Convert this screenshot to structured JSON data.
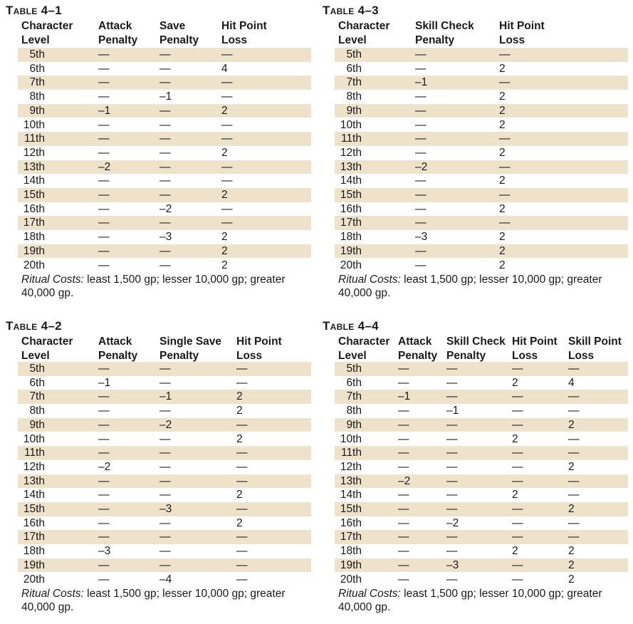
{
  "tables": [
    {
      "title": "Table 4–1",
      "headers": [
        [
          "Character",
          "Level"
        ],
        [
          "Attack",
          "Penalty"
        ],
        [
          "Save",
          "Penalty"
        ],
        [
          "Hit Point",
          "Loss"
        ]
      ],
      "rows": [
        [
          "5th",
          "—",
          "—",
          "—"
        ],
        [
          "6th",
          "—",
          "—",
          "4"
        ],
        [
          "7th",
          "—",
          "—",
          "—"
        ],
        [
          "8th",
          "—",
          "–1",
          "—"
        ],
        [
          "9th",
          "–1",
          "—",
          "2"
        ],
        [
          "10th",
          "—",
          "—",
          "—"
        ],
        [
          "11th",
          "—",
          "—",
          "—"
        ],
        [
          "12th",
          "—",
          "—",
          "2"
        ],
        [
          "13th",
          "–2",
          "—",
          "—"
        ],
        [
          "14th",
          "—",
          "—",
          "—"
        ],
        [
          "15th",
          "—",
          "—",
          "2"
        ],
        [
          "16th",
          "—",
          "–2",
          "—"
        ],
        [
          "17th",
          "—",
          "—",
          "—"
        ],
        [
          "18th",
          "—",
          "–3",
          "2"
        ],
        [
          "19th",
          "—",
          "—",
          "2"
        ],
        [
          "20th",
          "—",
          "—",
          "2"
        ]
      ],
      "ritual_label": "Ritual Costs:",
      "ritual_text": " least 1,500 gp; lesser 10,000 gp; greater 40,000 gp."
    },
    {
      "title": "Table 4–3",
      "headers": [
        [
          "Character",
          "Level"
        ],
        [
          "Skill Check",
          "Penalty"
        ],
        [
          "Hit Point",
          "Loss"
        ]
      ],
      "rows": [
        [
          "5th",
          "—",
          "—"
        ],
        [
          "6th",
          "—",
          "2"
        ],
        [
          "7th",
          "–1",
          "—"
        ],
        [
          "8th",
          "—",
          "2"
        ],
        [
          "9th",
          "—",
          "2"
        ],
        [
          "10th",
          "—",
          "2"
        ],
        [
          "11th",
          "—",
          "—"
        ],
        [
          "12th",
          "—",
          "2"
        ],
        [
          "13th",
          "–2",
          "—"
        ],
        [
          "14th",
          "—",
          "2"
        ],
        [
          "15th",
          "—",
          "—"
        ],
        [
          "16th",
          "—",
          "2"
        ],
        [
          "17th",
          "—",
          "—"
        ],
        [
          "18th",
          "–3",
          "2"
        ],
        [
          "19th",
          "—",
          "2"
        ],
        [
          "20th",
          "—",
          "2"
        ]
      ],
      "ritual_label": "Ritual Costs:",
      "ritual_text": " least 1,500 gp; lesser 10,000 gp; greater 40,000 gp."
    },
    {
      "title": "Table 4–2",
      "headers": [
        [
          "Character",
          "Level"
        ],
        [
          "Attack",
          "Penalty"
        ],
        [
          "Single Save",
          "Penalty"
        ],
        [
          "Hit Point",
          "Loss"
        ]
      ],
      "rows": [
        [
          "5th",
          "—",
          "—",
          "—"
        ],
        [
          "6th",
          "–1",
          "—",
          "—"
        ],
        [
          "7th",
          "—",
          "–1",
          "2"
        ],
        [
          "8th",
          "—",
          "—",
          "2"
        ],
        [
          "9th",
          "—",
          "–2",
          "—"
        ],
        [
          "10th",
          "—",
          "—",
          "2"
        ],
        [
          "11th",
          "—",
          "—",
          "—"
        ],
        [
          "12th",
          "–2",
          "—",
          "—"
        ],
        [
          "13th",
          "—",
          "—",
          "—"
        ],
        [
          "14th",
          "—",
          "—",
          "2"
        ],
        [
          "15th",
          "—",
          "–3",
          "—"
        ],
        [
          "16th",
          "—",
          "—",
          "2"
        ],
        [
          "17th",
          "—",
          "—",
          "—"
        ],
        [
          "18th",
          "–3",
          "—",
          "—"
        ],
        [
          "19th",
          "—",
          "—",
          "—"
        ],
        [
          "20th",
          "—",
          "–4",
          "—"
        ]
      ],
      "ritual_label": "Ritual Costs:",
      "ritual_text": " least 1,500 gp; lesser 10,000 gp; greater 40,000 gp."
    },
    {
      "title": "Table 4–4",
      "headers": [
        [
          "Character",
          "Level"
        ],
        [
          "Attack",
          "Penalty"
        ],
        [
          "Skill Check",
          "Penalty"
        ],
        [
          "Hit Point",
          "Loss"
        ],
        [
          "Skill Point",
          "Loss"
        ]
      ],
      "rows": [
        [
          "5th",
          "—",
          "—",
          "—",
          "—"
        ],
        [
          "6th",
          "—",
          "—",
          "2",
          "4"
        ],
        [
          "7th",
          "–1",
          "—",
          "—",
          "—"
        ],
        [
          "8th",
          "—",
          "–1",
          "—",
          "—"
        ],
        [
          "9th",
          "—",
          "—",
          "—",
          "2"
        ],
        [
          "10th",
          "—",
          "—",
          "2",
          "—"
        ],
        [
          "11th",
          "—",
          "—",
          "—",
          "—"
        ],
        [
          "12th",
          "—",
          "—",
          "—",
          "2"
        ],
        [
          "13th",
          "–2",
          "—",
          "—",
          "—"
        ],
        [
          "14th",
          "—",
          "—",
          "2",
          "—"
        ],
        [
          "15th",
          "—",
          "—",
          "—",
          "2"
        ],
        [
          "16th",
          "—",
          "–2",
          "—",
          "—"
        ],
        [
          "17th",
          "—",
          "—",
          "—",
          "—"
        ],
        [
          "18th",
          "—",
          "—",
          "2",
          "2"
        ],
        [
          "19th",
          "—",
          "–3",
          "—",
          "2"
        ],
        [
          "20th",
          "—",
          "—",
          "—",
          "2"
        ]
      ],
      "ritual_label": "Ritual Costs:",
      "ritual_text": " least 1,500 gp; lesser 10,000 gp; greater 40,000 gp."
    }
  ]
}
